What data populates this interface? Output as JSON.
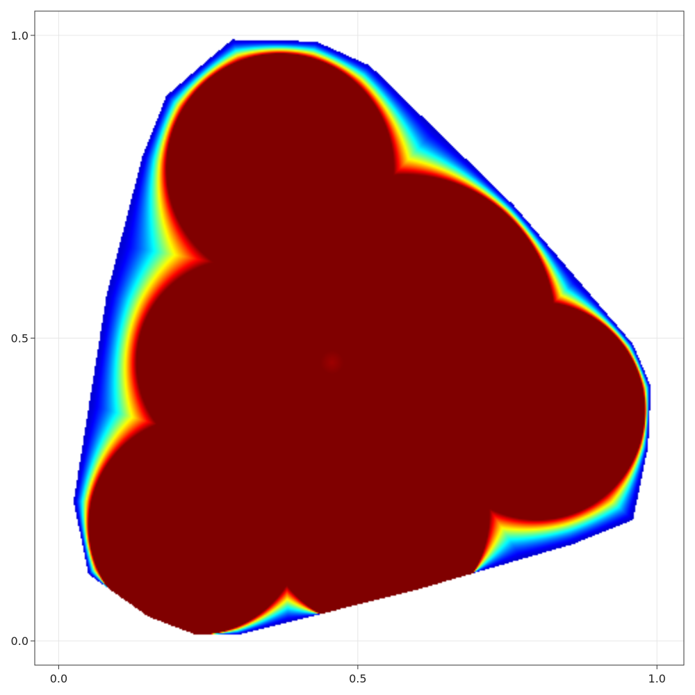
{
  "chart_data": {
    "type": "heatmap",
    "title": "",
    "xlabel": "",
    "ylabel": "",
    "xlim": [
      -0.04,
      1.045
    ],
    "ylim": [
      -0.04,
      1.04
    ],
    "x_ticks": [
      0.0,
      0.5,
      1.0
    ],
    "x_tick_labels": [
      "0.0",
      "0.5",
      "1.0"
    ],
    "y_ticks": [
      0.0,
      0.5,
      1.0
    ],
    "y_tick_labels": [
      "0.0",
      "0.5",
      "1.0"
    ],
    "grid": true,
    "colormap": "jet",
    "colors": {
      "high": "#800000",
      "low": "#00008f",
      "background": "#ffffff",
      "grid": "#e6e6e6",
      "frame": "#333333"
    },
    "value_range": [
      0,
      1
    ],
    "discs": [
      {
        "cx": 0.37,
        "cy": 0.78,
        "r": 0.19,
        "value": 1.0
      },
      {
        "cx": 0.58,
        "cy": 0.52,
        "r": 0.25,
        "value": 1.0
      },
      {
        "cx": 0.3,
        "cy": 0.46,
        "r": 0.17,
        "value": 1.0
      },
      {
        "cx": 0.23,
        "cy": 0.19,
        "r": 0.18,
        "value": 1.0
      },
      {
        "cx": 0.53,
        "cy": 0.21,
        "r": 0.19,
        "value": 1.0
      },
      {
        "cx": 0.8,
        "cy": 0.38,
        "r": 0.18,
        "value": 1.0
      }
    ],
    "hull": [
      [
        0.29,
        0.993
      ],
      [
        0.43,
        0.99
      ],
      [
        0.52,
        0.95
      ],
      [
        0.76,
        0.72
      ],
      [
        0.96,
        0.49
      ],
      [
        0.99,
        0.42
      ],
      [
        0.985,
        0.32
      ],
      [
        0.96,
        0.2
      ],
      [
        0.86,
        0.16
      ],
      [
        0.6,
        0.085
      ],
      [
        0.3,
        0.01
      ],
      [
        0.23,
        0.01
      ],
      [
        0.15,
        0.04
      ],
      [
        0.05,
        0.11
      ],
      [
        0.025,
        0.23
      ],
      [
        0.08,
        0.57
      ],
      [
        0.14,
        0.8
      ],
      [
        0.18,
        0.9
      ],
      [
        0.25,
        0.96
      ]
    ],
    "center_spot": {
      "x": 0.457,
      "y": 0.46,
      "value": 0.97
    }
  }
}
